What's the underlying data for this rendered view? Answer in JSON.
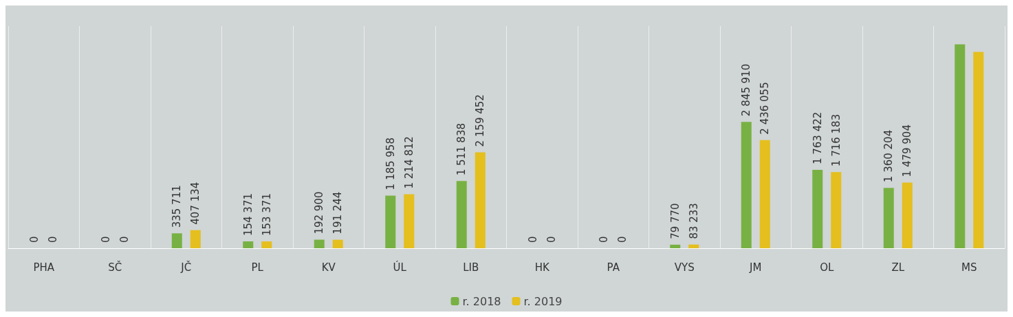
{
  "chart_data": {
    "type": "bar",
    "categories": [
      "PHA",
      "SČ",
      "JČ",
      "PL",
      "KV",
      "ÚL",
      "LIB",
      "HK",
      "PA",
      "VYS",
      "JM",
      "OL",
      "ZL",
      "MS"
    ],
    "series": [
      {
        "name": "r. 2018",
        "color": "#78b143",
        "values": [
          0,
          0,
          335711,
          154371,
          192900,
          1185958,
          1511838,
          0,
          0,
          79770,
          2845910,
          1763422,
          1360204,
          4590000
        ],
        "value_labels": [
          "0",
          "0",
          "335 711",
          "154 371",
          "192 900",
          "1 185 958",
          "1 511 838",
          "0",
          "0",
          "79 770",
          "2 845 910",
          "1 763 422",
          "1 360 204",
          null
        ]
      },
      {
        "name": "r. 2019",
        "color": "#e4bf1e",
        "values": [
          0,
          0,
          407134,
          153371,
          191244,
          1214812,
          2159452,
          0,
          0,
          83233,
          2436055,
          1716183,
          1479904,
          4420000
        ],
        "value_labels": [
          "0",
          "0",
          "407 134",
          "153 371",
          "191 244",
          "1 214 812",
          "2 159 452",
          "0",
          "0",
          "83 233",
          "2 436 055",
          "1 716 183",
          "1 479 904",
          null
        ]
      }
    ],
    "grid": "x",
    "legend": "bottom"
  }
}
